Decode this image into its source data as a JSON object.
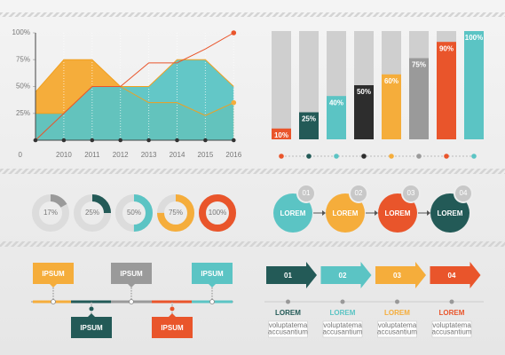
{
  "chart_data": [
    {
      "type": "area",
      "categories": [
        null,
        "2010",
        "2011",
        "2012",
        "2013",
        "2014",
        "2015",
        "2016"
      ],
      "series": [
        {
          "kind": "area",
          "color": "#f5ad3b",
          "values": [
            45,
            75,
            75,
            50,
            35,
            35,
            23,
            35
          ]
        },
        {
          "kind": "area",
          "color": "#5bc4c4",
          "values": [
            25,
            25,
            50,
            50,
            50,
            75,
            75,
            50
          ]
        },
        {
          "kind": "line",
          "color": "#e9552b",
          "values": [
            0,
            25,
            50,
            50,
            72,
            72,
            85,
            100
          ]
        }
      ],
      "ylim": [
        0,
        100
      ],
      "yticks": [
        0,
        {
          "value": 25,
          "label": "25%"
        },
        {
          "value": 50,
          "label": "50%"
        },
        {
          "value": 75,
          "label": "75%"
        },
        {
          "value": 100,
          "label": "100%"
        }
      ]
    },
    {
      "type": "bar",
      "values": [
        10,
        25,
        40,
        50,
        60,
        75,
        90,
        100
      ],
      "value_labels": [
        "10%",
        "25%",
        "40%",
        "50%",
        "60%",
        "75%",
        "90%",
        "100%"
      ],
      "colors": [
        "#e9552b",
        "#235a57",
        "#5bc4c4",
        "#2d2d2d",
        "#f5ad3b",
        "#9a9a9a",
        "#e9552b",
        "#5bc4c4"
      ],
      "ylim": [
        0,
        100
      ]
    },
    {
      "type": "donut",
      "values": [
        17,
        25,
        50,
        75,
        100
      ],
      "value_labels": [
        "17%",
        "25%",
        "50%",
        "75%",
        "100%"
      ],
      "colors": [
        "#9a9a9a",
        "#235a57",
        "#5bc4c4",
        "#f5ad3b",
        "#e9552b"
      ],
      "ylim": [
        0,
        100
      ]
    }
  ],
  "process": {
    "steps": [
      {
        "number": "01",
        "label": "LOREM",
        "color": "#5bc4c4"
      },
      {
        "number": "02",
        "label": "LOREM",
        "color": "#f5ad3b"
      },
      {
        "number": "03",
        "label": "LOREM",
        "color": "#e9552b"
      },
      {
        "number": "04",
        "label": "LOREM",
        "color": "#235a57"
      }
    ]
  },
  "timeline": {
    "items": [
      {
        "label": "IPSUM",
        "color": "#f5ad3b"
      },
      {
        "label": "IPSUM",
        "color": "#235a57"
      },
      {
        "label": "IPSUM",
        "color": "#9a9a9a"
      },
      {
        "label": "IPSUM",
        "color": "#e9552b"
      },
      {
        "label": "IPSUM",
        "color": "#5bc4c4"
      }
    ]
  },
  "arrows": {
    "items": [
      {
        "number": "01",
        "label": "LOREM",
        "color": "#235a57",
        "caption": [
          "voluptatema",
          "accusantium"
        ]
      },
      {
        "number": "02",
        "label": "LOREM",
        "color": "#5bc4c4",
        "caption": [
          "voluptatema",
          "accusantium"
        ]
      },
      {
        "number": "03",
        "label": "LOREM",
        "color": "#f5ad3b",
        "caption": [
          "voluptatema",
          "accusantium"
        ]
      },
      {
        "number": "04",
        "label": "LOREM",
        "color": "#e9552b",
        "caption": [
          "voluptatema",
          "accusantium"
        ]
      }
    ]
  }
}
